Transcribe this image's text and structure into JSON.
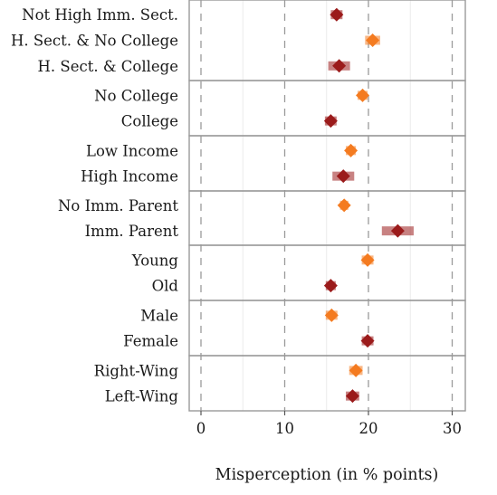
{
  "chart_data": {
    "type": "scatter",
    "xlabel": "Misperception (in % points)",
    "ylabel": "",
    "xlim": [
      -1.3,
      31.6
    ],
    "xticks": [
      0,
      10,
      20,
      30
    ],
    "grid": "vertical dashed reference lines at 0, 10, 20, 30; faint minor lines at 5, 15, 25",
    "colors": {
      "orange": "#f47b20",
      "dark_red": "#9b1b1b",
      "panel_border": "#999999"
    },
    "groups": [
      {
        "rows": [
          {
            "label": "Not High Imm. Sect.",
            "value": 16.2,
            "ci": [
              15.5,
              16.9
            ],
            "color": "dark_red"
          },
          {
            "label": "H. Sect. & No College",
            "value": 20.5,
            "ci": [
              19.6,
              21.4
            ],
            "color": "orange"
          },
          {
            "label": "H. Sect. & College",
            "value": 16.5,
            "ci": [
              15.2,
              17.8
            ],
            "color": "dark_red"
          }
        ]
      },
      {
        "rows": [
          {
            "label": "No College",
            "value": 19.3,
            "ci": [
              18.7,
              19.9
            ],
            "color": "orange"
          },
          {
            "label": "College",
            "value": 15.5,
            "ci": [
              14.8,
              16.2
            ],
            "color": "dark_red"
          }
        ]
      },
      {
        "rows": [
          {
            "label": "Low Income",
            "value": 17.9,
            "ci": [
              17.3,
              18.5
            ],
            "color": "orange"
          },
          {
            "label": "High Income",
            "value": 17.0,
            "ci": [
              15.7,
              18.3
            ],
            "color": "dark_red"
          }
        ]
      },
      {
        "rows": [
          {
            "label": "No Imm. Parent",
            "value": 17.1,
            "ci": [
              16.6,
              17.6
            ],
            "color": "orange"
          },
          {
            "label": "Imm. Parent",
            "value": 23.5,
            "ci": [
              21.6,
              25.4
            ],
            "color": "dark_red"
          }
        ]
      },
      {
        "rows": [
          {
            "label": "Young",
            "value": 19.9,
            "ci": [
              19.2,
              20.6
            ],
            "color": "orange"
          },
          {
            "label": "Old",
            "value": 15.5,
            "ci": [
              14.9,
              16.1
            ],
            "color": "dark_red"
          }
        ]
      },
      {
        "rows": [
          {
            "label": "Male",
            "value": 15.6,
            "ci": [
              14.9,
              16.3
            ],
            "color": "orange"
          },
          {
            "label": "Female",
            "value": 19.9,
            "ci": [
              19.2,
              20.6
            ],
            "color": "dark_red"
          }
        ]
      },
      {
        "rows": [
          {
            "label": "Right-Wing",
            "value": 18.5,
            "ci": [
              17.7,
              19.3
            ],
            "color": "orange"
          },
          {
            "label": "Left-Wing",
            "value": 18.1,
            "ci": [
              17.3,
              18.9
            ],
            "color": "dark_red"
          }
        ]
      }
    ]
  }
}
